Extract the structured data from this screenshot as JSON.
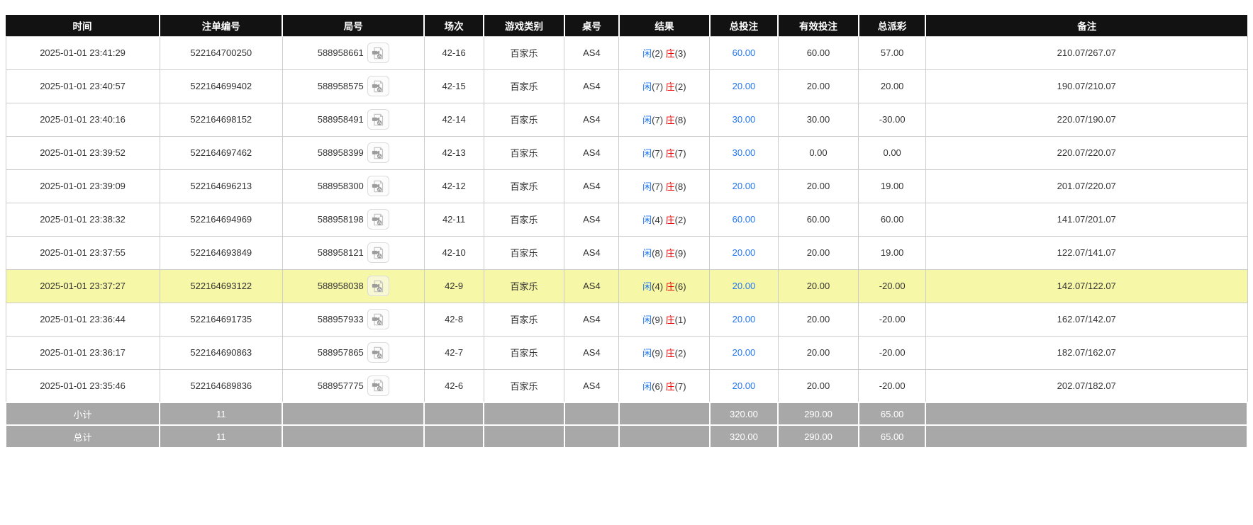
{
  "colors": {
    "header_bg": "#121212",
    "header_text": "#ffffff",
    "accent_blue": "#2176f5",
    "negative_red": "#ee0000",
    "highlight_yellow": "#f7f7a8",
    "summary_bg": "#a8a8a8",
    "row_border": "#cccccc"
  },
  "icons": {
    "video_icon": "video-replay-file"
  },
  "table": {
    "columns": [
      {
        "key": "time",
        "label": "时间",
        "width": "12.4%"
      },
      {
        "key": "bet_no",
        "label": "注单编号",
        "width": "9.9%"
      },
      {
        "key": "round_no",
        "label": "局号",
        "width": "11.4%"
      },
      {
        "key": "session",
        "label": "场次",
        "width": "4.8%"
      },
      {
        "key": "game_type",
        "label": "游戏类别",
        "width": "6.5%"
      },
      {
        "key": "table_no",
        "label": "桌号",
        "width": "4.4%"
      },
      {
        "key": "result",
        "label": "结果",
        "width": "7.3%"
      },
      {
        "key": "total_bet",
        "label": "总投注",
        "width": "5.5%"
      },
      {
        "key": "valid_bet",
        "label": "有效投注",
        "width": "6.5%"
      },
      {
        "key": "total_payout",
        "label": "总派彩",
        "width": "5.4%"
      },
      {
        "key": "remark",
        "label": "备注",
        "width": "25.9%"
      }
    ],
    "rows": [
      {
        "time": "2025-01-01 23:41:29",
        "bet_no": "522164700250",
        "round_no": "588958661",
        "session": "42-16",
        "game_type": "百家乐",
        "table_no": "AS4",
        "result": {
          "player_label": "闲",
          "player_score": "(2)",
          "banker_label": "庄",
          "banker_score": "(3)"
        },
        "total_bet": "60.00",
        "valid_bet": "60.00",
        "total_payout": "57.00",
        "remark": "210.07/267.07",
        "highlight": false
      },
      {
        "time": "2025-01-01 23:40:57",
        "bet_no": "522164699402",
        "round_no": "588958575",
        "session": "42-15",
        "game_type": "百家乐",
        "table_no": "AS4",
        "result": {
          "player_label": "闲",
          "player_score": "(7)",
          "banker_label": "庄",
          "banker_score": "(2)"
        },
        "total_bet": "20.00",
        "valid_bet": "20.00",
        "total_payout": "20.00",
        "remark": "190.07/210.07",
        "highlight": false
      },
      {
        "time": "2025-01-01 23:40:16",
        "bet_no": "522164698152",
        "round_no": "588958491",
        "session": "42-14",
        "game_type": "百家乐",
        "table_no": "AS4",
        "result": {
          "player_label": "闲",
          "player_score": "(7)",
          "banker_label": "庄",
          "banker_score": "(8)"
        },
        "total_bet": "30.00",
        "valid_bet": "30.00",
        "total_payout": "-30.00",
        "remark": "220.07/190.07",
        "highlight": false
      },
      {
        "time": "2025-01-01 23:39:52",
        "bet_no": "522164697462",
        "round_no": "588958399",
        "session": "42-13",
        "game_type": "百家乐",
        "table_no": "AS4",
        "result": {
          "player_label": "闲",
          "player_score": "(7)",
          "banker_label": "庄",
          "banker_score": "(7)"
        },
        "total_bet": "30.00",
        "valid_bet": "0.00",
        "total_payout": "0.00",
        "remark": "220.07/220.07",
        "highlight": false
      },
      {
        "time": "2025-01-01 23:39:09",
        "bet_no": "522164696213",
        "round_no": "588958300",
        "session": "42-12",
        "game_type": "百家乐",
        "table_no": "AS4",
        "result": {
          "player_label": "闲",
          "player_score": "(7)",
          "banker_label": "庄",
          "banker_score": "(8)"
        },
        "total_bet": "20.00",
        "valid_bet": "20.00",
        "total_payout": "19.00",
        "remark": "201.07/220.07",
        "highlight": false
      },
      {
        "time": "2025-01-01 23:38:32",
        "bet_no": "522164694969",
        "round_no": "588958198",
        "session": "42-11",
        "game_type": "百家乐",
        "table_no": "AS4",
        "result": {
          "player_label": "闲",
          "player_score": "(4)",
          "banker_label": "庄",
          "banker_score": "(2)"
        },
        "total_bet": "60.00",
        "valid_bet": "60.00",
        "total_payout": "60.00",
        "remark": "141.07/201.07",
        "highlight": false
      },
      {
        "time": "2025-01-01 23:37:55",
        "bet_no": "522164693849",
        "round_no": "588958121",
        "session": "42-10",
        "game_type": "百家乐",
        "table_no": "AS4",
        "result": {
          "player_label": "闲",
          "player_score": "(8)",
          "banker_label": "庄",
          "banker_score": "(9)"
        },
        "total_bet": "20.00",
        "valid_bet": "20.00",
        "total_payout": "19.00",
        "remark": "122.07/141.07",
        "highlight": false
      },
      {
        "time": "2025-01-01 23:37:27",
        "bet_no": "522164693122",
        "round_no": "588958038",
        "session": "42-9",
        "game_type": "百家乐",
        "table_no": "AS4",
        "result": {
          "player_label": "闲",
          "player_score": "(4)",
          "banker_label": "庄",
          "banker_score": "(6)"
        },
        "total_bet": "20.00",
        "valid_bet": "20.00",
        "total_payout": "-20.00",
        "remark": "142.07/122.07",
        "highlight": true
      },
      {
        "time": "2025-01-01 23:36:44",
        "bet_no": "522164691735",
        "round_no": "588957933",
        "session": "42-8",
        "game_type": "百家乐",
        "table_no": "AS4",
        "result": {
          "player_label": "闲",
          "player_score": "(9)",
          "banker_label": "庄",
          "banker_score": "(1)"
        },
        "total_bet": "20.00",
        "valid_bet": "20.00",
        "total_payout": "-20.00",
        "remark": "162.07/142.07",
        "highlight": false
      },
      {
        "time": "2025-01-01 23:36:17",
        "bet_no": "522164690863",
        "round_no": "588957865",
        "session": "42-7",
        "game_type": "百家乐",
        "table_no": "AS4",
        "result": {
          "player_label": "闲",
          "player_score": "(9)",
          "banker_label": "庄",
          "banker_score": "(2)"
        },
        "total_bet": "20.00",
        "valid_bet": "20.00",
        "total_payout": "-20.00",
        "remark": "182.07/162.07",
        "highlight": false
      },
      {
        "time": "2025-01-01 23:35:46",
        "bet_no": "522164689836",
        "round_no": "588957775",
        "session": "42-6",
        "game_type": "百家乐",
        "table_no": "AS4",
        "result": {
          "player_label": "闲",
          "player_score": "(6)",
          "banker_label": "庄",
          "banker_score": "(7)"
        },
        "total_bet": "20.00",
        "valid_bet": "20.00",
        "total_payout": "-20.00",
        "remark": "202.07/182.07",
        "highlight": false
      }
    ],
    "subtotal": {
      "label": "小计",
      "count": "11",
      "total_bet": "320.00",
      "valid_bet": "290.00",
      "total_payout": "65.00"
    },
    "total": {
      "label": "总计",
      "count": "11",
      "total_bet": "320.00",
      "valid_bet": "290.00",
      "total_payout": "65.00"
    }
  }
}
